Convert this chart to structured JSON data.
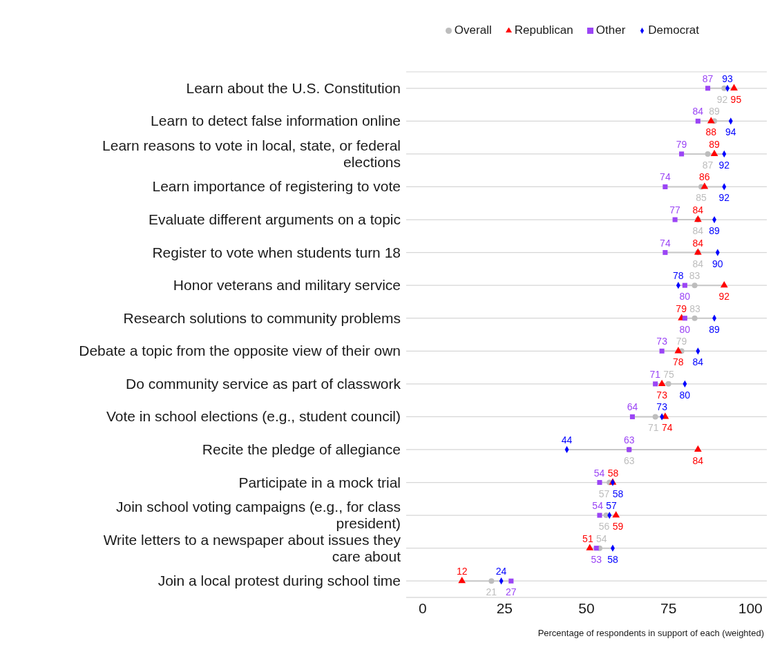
{
  "chart_data": {
    "type": "scatter",
    "orientation": "horizontal",
    "xlabel": "Percentage of respondents in support of each (weighted)",
    "categories": [
      "Learn about the U.S. Constitution",
      "Learn to detect false information online",
      "Learn reasons to vote in local, state, or federal elections",
      "Learn importance of registering to vote",
      "Evaluate different arguments on a topic",
      "Register to vote when students turn 18",
      "Honor veterans and military service",
      "Research solutions to community problems",
      "Debate a topic from the opposite view of their own",
      "Do community service as part of classwork",
      "Vote in school elections (e.g., student council)",
      "Recite the pledge of allegiance",
      "Participate in a mock trial",
      "Join school voting campaigns (e.g., for class president)",
      "Write letters to a newspaper about issues they care about",
      "Join a local protest during school time"
    ],
    "series": [
      {
        "name": "Overall",
        "color": "#bdbdbd",
        "marker": "circle",
        "values": [
          92,
          89,
          87,
          85,
          84,
          84,
          83,
          83,
          79,
          75,
          71,
          63,
          57,
          56,
          54,
          21
        ]
      },
      {
        "name": "Republican",
        "color": "#ff0000",
        "marker": "triangle",
        "values": [
          95,
          88,
          89,
          86,
          84,
          84,
          92,
          79,
          78,
          73,
          74,
          84,
          58,
          59,
          51,
          12
        ]
      },
      {
        "name": "Other",
        "color": "#9b45f5",
        "marker": "square",
        "values": [
          87,
          84,
          79,
          74,
          77,
          74,
          80,
          80,
          73,
          71,
          64,
          63,
          54,
          54,
          53,
          27
        ]
      },
      {
        "name": "Democrat",
        "color": "#0000ff",
        "marker": "diamond",
        "values": [
          93,
          94,
          92,
          92,
          89,
          90,
          78,
          89,
          84,
          80,
          73,
          44,
          58,
          57,
          58,
          24
        ]
      }
    ],
    "xlim": [
      -5,
      105
    ],
    "xticks": [
      0,
      25,
      50,
      75,
      100
    ],
    "grid": "y",
    "legend": "top right",
    "data_labels": true
  }
}
